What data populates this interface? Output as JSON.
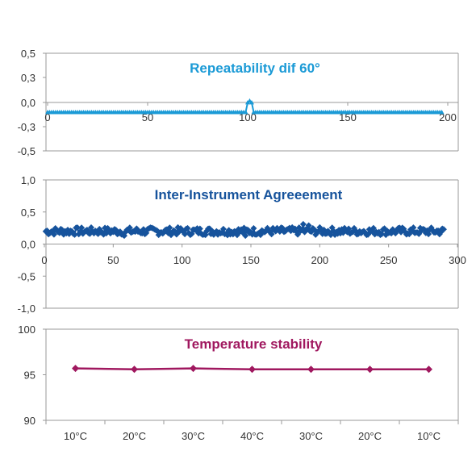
{
  "chart_data": [
    {
      "type": "scatter",
      "title": "Repeatability dif 60°",
      "title_color": "#1b9ad6",
      "series_color": "#1b9ad6",
      "xlim": [
        0,
        200
      ],
      "ylim": [
        -0.5,
        0.5
      ],
      "x_ticks": [
        0,
        50,
        100,
        150,
        200
      ],
      "x_tick_labels": [
        "0",
        "50",
        "100",
        "150",
        "200"
      ],
      "y_ticks": [
        0.5,
        0.3,
        0.0,
        -0.3,
        -0.5
      ],
      "y_tick_labels": [
        "0,5",
        "0,3",
        "0,0",
        "-0,3",
        "-0,5"
      ],
      "marker": "triangle",
      "series": [
        {
          "points_rule": "x = 0..197 step 1; y = -0.12 except spikes",
          "base_y": -0.12,
          "x_range": [
            0,
            197
          ],
          "spikes": [
            [
              100,
              0.0
            ],
            [
              101,
              0.02
            ],
            [
              102,
              0.0
            ]
          ]
        }
      ]
    },
    {
      "type": "scatter",
      "title": "Inter-Instrument Agreeement",
      "title_color": "#16539c",
      "series_color": "#16539c",
      "xlim": [
        0,
        300
      ],
      "ylim": [
        -1.0,
        1.0
      ],
      "x_ticks": [
        0,
        50,
        100,
        150,
        200,
        250,
        300
      ],
      "x_tick_labels": [
        "0",
        "50",
        "100",
        "150",
        "200",
        "250",
        "300"
      ],
      "y_ticks": [
        1.0,
        0.5,
        0.0,
        -0.5,
        -1.0
      ],
      "y_tick_labels": [
        "1,0",
        "0,5",
        "0,0",
        "-0,5",
        "-1,0"
      ],
      "marker": "diamond",
      "series": [
        {
          "x_range": [
            1,
            290
          ],
          "y_mean": 0.2,
          "y_jitter": 0.06,
          "outliers": [
            [
              188,
              0.31
            ],
            [
              192,
              0.29
            ],
            [
              58,
              0.13
            ],
            [
              146,
              0.13
            ]
          ]
        }
      ]
    },
    {
      "type": "line",
      "title": "Temperature stability",
      "title_color": "#a0185f",
      "series_color": "#a0185f",
      "categories": [
        "10°C",
        "20°C",
        "30°C",
        "40°C",
        "30°C",
        "20°C",
        "10°C"
      ],
      "ylim": [
        90,
        100
      ],
      "y_ticks": [
        100,
        95,
        90
      ],
      "y_tick_labels": [
        "100",
        "95",
        "90"
      ],
      "marker": "diamond",
      "series": [
        {
          "values": [
            95.7,
            95.6,
            95.7,
            95.6,
            95.6,
            95.6,
            95.6
          ]
        }
      ]
    }
  ],
  "colors": {
    "axis": "#999999",
    "text": "#333333"
  }
}
